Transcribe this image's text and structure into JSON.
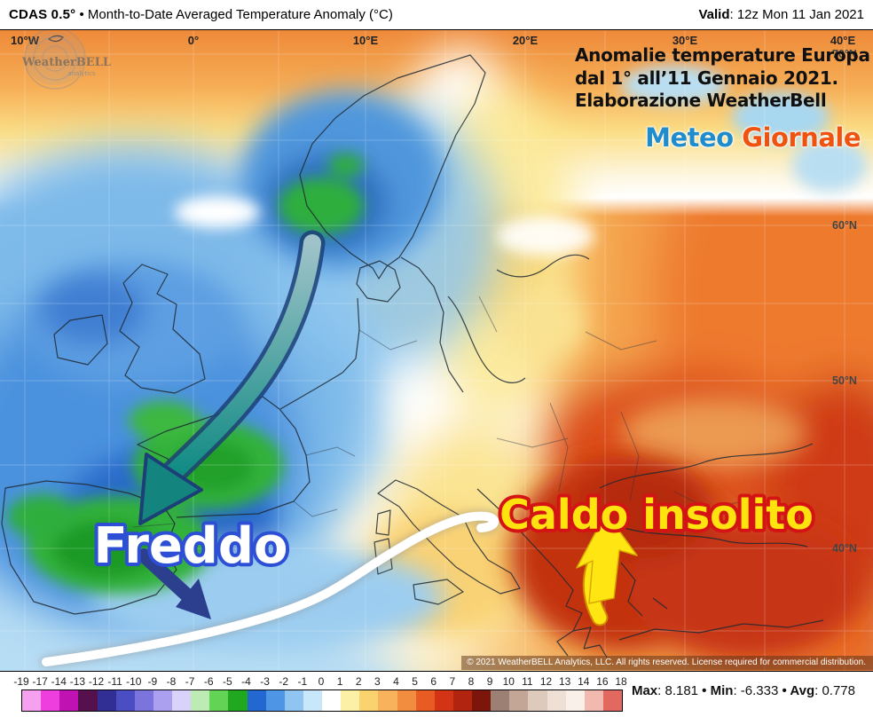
{
  "header": {
    "product": "CDAS 0.5°",
    "sep": " • ",
    "title": "Month-to-Date Averaged Temperature Anomaly (°C)",
    "valid_label": "Valid",
    "valid_value": ": 12z Mon 11 Jan 2021"
  },
  "map": {
    "lon_labels": [
      "10°W",
      "0°",
      "10°E",
      "20°E",
      "30°E",
      "40°E"
    ],
    "lat_labels": [
      "70°N",
      "60°N",
      "50°N",
      "40°N"
    ],
    "annotation": {
      "line1": "Anomalie temperature Europa",
      "line2": "dal 1° all’11 Gennaio 2021.",
      "line3": "Elaborazione WeatherBell"
    },
    "logo": {
      "part1": "Meteo",
      "part2": "Giornale",
      "color1": "#1e8ccd",
      "color2": "#f0530f"
    },
    "overlay_labels": {
      "cold": "Freddo",
      "cold_fill": "#ffffff",
      "cold_stroke": "#2d4fd6",
      "warm": "Caldo insolito",
      "warm_fill": "#ffe30f",
      "warm_stroke": "#d41414"
    },
    "watermark": {
      "line1": "WeatherBELL",
      "line2": "analytics"
    },
    "copyright": "© 2021 WeatherBELL Analytics, LLC. All rights reserved. License required for commercial distribution."
  },
  "legend": {
    "ticks": [
      "-19",
      "-17",
      "-14",
      "-13",
      "-12",
      "-11",
      "-10",
      "-9",
      "-8",
      "-7",
      "-6",
      "-5",
      "-4",
      "-3",
      "-2",
      "-1",
      "0",
      "1",
      "2",
      "3",
      "4",
      "5",
      "6",
      "7",
      "8",
      "9",
      "10",
      "11",
      "12",
      "13",
      "14",
      "16",
      "18"
    ],
    "segment_colors": [
      "#f6a1ef",
      "#ee3ede",
      "#c012b2",
      "#56104e",
      "#322f94",
      "#4a4ec2",
      "#7c74dd",
      "#ab9ff0",
      "#d9d2fa",
      "#bcecb4",
      "#63d356",
      "#21a821",
      "#2268d0",
      "#4e95e6",
      "#90c5f2",
      "#c9e7fb",
      "#ffffff",
      "#fcf0a6",
      "#fbd36e",
      "#f8b25c",
      "#f28c3e",
      "#e85c24",
      "#d23415",
      "#b02410",
      "#7c150a",
      "#9c8074",
      "#c3a695",
      "#decabc",
      "#efe0d6",
      "#f9f0ea",
      "#f2b9ae",
      "#e2695f"
    ],
    "stats": {
      "max_label": "Max",
      "max_value": ": 8.181",
      "min_label": "Min",
      "min_value": ": -6.333",
      "avg_label": "Avg",
      "avg_value": ": 0.778",
      "sep": " • "
    }
  }
}
